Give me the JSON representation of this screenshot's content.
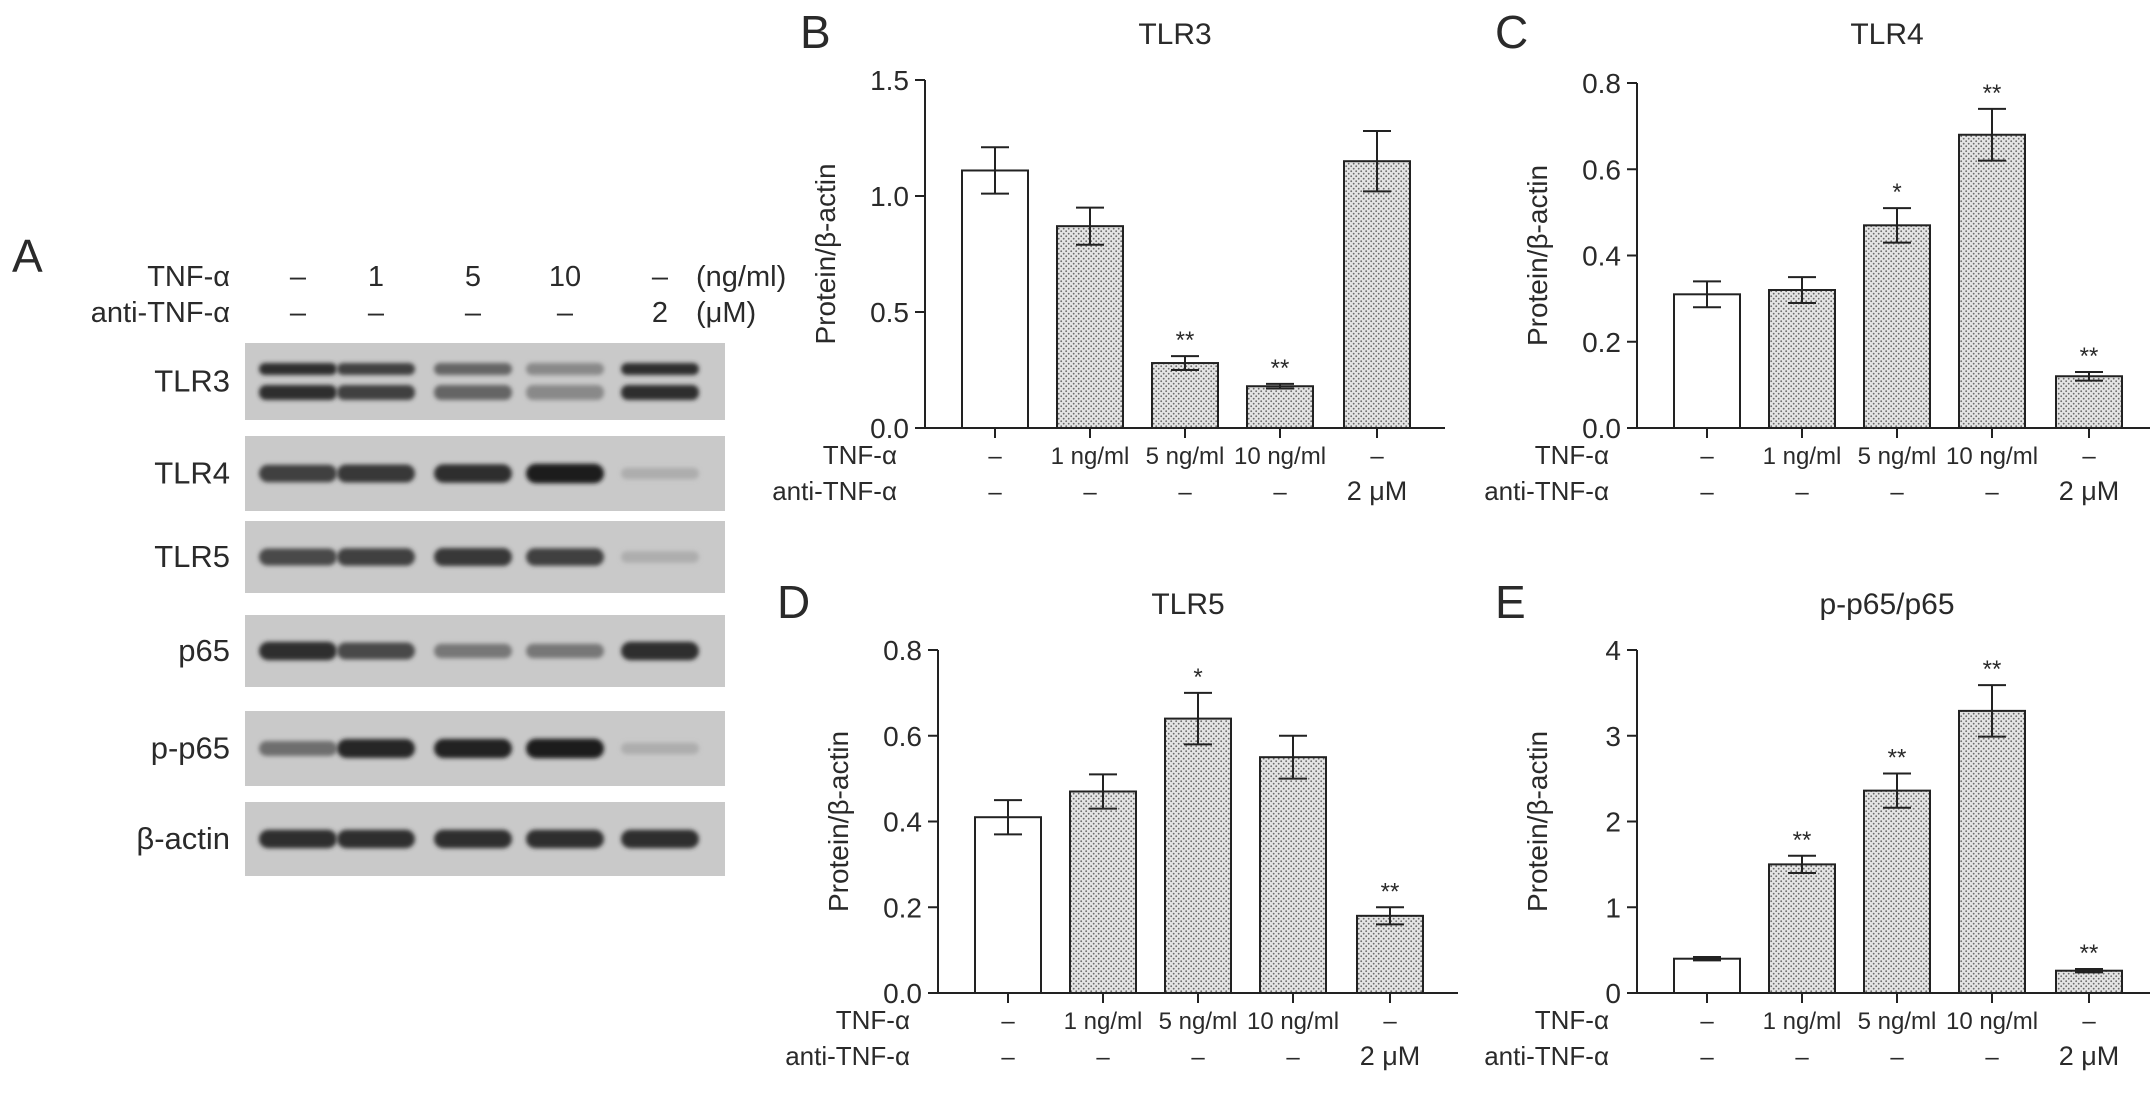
{
  "panel_a": {
    "letter": "A",
    "header_rows": [
      {
        "label": "TNF-α",
        "values": [
          "–",
          "1",
          "5",
          "10",
          "–"
        ],
        "unit": "(ng/ml)"
      },
      {
        "label": "anti-TNF-α",
        "values": [
          "–",
          "–",
          "–",
          "–",
          "2"
        ],
        "unit": "(μM)"
      }
    ],
    "blots": [
      {
        "label": "TLR3",
        "intensities": [
          0.85,
          0.75,
          0.55,
          0.35,
          0.85
        ],
        "double": true
      },
      {
        "label": "TLR4",
        "intensities": [
          0.75,
          0.8,
          0.85,
          0.95,
          0.15
        ],
        "double": false
      },
      {
        "label": "TLR5",
        "intensities": [
          0.7,
          0.75,
          0.8,
          0.75,
          0.15
        ],
        "double": false
      },
      {
        "label": "p65",
        "intensities": [
          0.85,
          0.7,
          0.45,
          0.45,
          0.85
        ],
        "double": false
      },
      {
        "label": "p-p65",
        "intensities": [
          0.5,
          0.9,
          0.92,
          0.95,
          0.15
        ],
        "double": false
      },
      {
        "label": "β-actin",
        "intensities": [
          0.85,
          0.85,
          0.85,
          0.85,
          0.85
        ],
        "double": false
      }
    ]
  },
  "row_labels": {
    "tnf": "TNF-α",
    "anti": "anti-TNF-α"
  },
  "tnf_row": [
    "–",
    "1 ng/ml",
    "5 ng/ml",
    "10 ng/ml",
    "–"
  ],
  "anti_row": [
    "–",
    "–",
    "–",
    "–",
    "2 μM"
  ],
  "colors": {
    "open_bar": "#ffffff",
    "dotted_bar": "#d6d6d6",
    "ink": "#222222"
  },
  "chart_data": [
    {
      "letter": "B",
      "type": "bar",
      "title": "TLR3",
      "ylabel": "Protein/β-actin",
      "ylim": [
        0,
        1.5
      ],
      "yticks": [
        "0.0",
        "0.5",
        "1.0",
        "1.5"
      ],
      "categories": [
        "–/–",
        "1 ng/ml/–",
        "5 ng/ml/–",
        "10 ng/ml/–",
        "–/2 μM"
      ],
      "values": [
        1.11,
        0.87,
        0.28,
        0.18,
        1.15
      ],
      "errors": [
        0.1,
        0.08,
        0.03,
        0.01,
        0.13
      ],
      "significance": [
        "",
        "",
        "**",
        "**",
        ""
      ]
    },
    {
      "letter": "C",
      "type": "bar",
      "title": "TLR4",
      "ylabel": "Protein/β-actin",
      "ylim": [
        0,
        0.8
      ],
      "yticks": [
        "0.0",
        "0.2",
        "0.4",
        "0.6",
        "0.8"
      ],
      "categories": [
        "–/–",
        "1 ng/ml/–",
        "5 ng/ml/–",
        "10 ng/ml/–",
        "–/2 μM"
      ],
      "values": [
        0.31,
        0.32,
        0.47,
        0.68,
        0.12
      ],
      "errors": [
        0.03,
        0.03,
        0.04,
        0.06,
        0.01
      ],
      "significance": [
        "",
        "",
        "*",
        "**",
        "**"
      ]
    },
    {
      "letter": "D",
      "type": "bar",
      "title": "TLR5",
      "ylabel": "Protein/β-actin",
      "ylim": [
        0,
        0.8
      ],
      "yticks": [
        "0.0",
        "0.2",
        "0.4",
        "0.6",
        "0.8"
      ],
      "categories": [
        "–/–",
        "1 ng/ml/–",
        "5 ng/ml/–",
        "10 ng/ml/–",
        "–/2 μM"
      ],
      "values": [
        0.41,
        0.47,
        0.64,
        0.55,
        0.18
      ],
      "errors": [
        0.04,
        0.04,
        0.06,
        0.05,
        0.02
      ],
      "significance": [
        "",
        "",
        "*",
        "",
        "**"
      ]
    },
    {
      "letter": "E",
      "type": "bar",
      "title": "p-p65/p65",
      "ylabel": "Protein/β-actin",
      "ylim": [
        0,
        4
      ],
      "yticks": [
        "0",
        "1",
        "2",
        "3",
        "4"
      ],
      "categories": [
        "–/–",
        "1 ng/ml/–",
        "5 ng/ml/–",
        "10 ng/ml/–",
        "–/2 μM"
      ],
      "values": [
        0.4,
        1.5,
        2.36,
        3.29,
        0.26
      ],
      "errors": [
        0.02,
        0.1,
        0.2,
        0.3,
        0.02
      ],
      "significance": [
        "",
        "**",
        "**",
        "**",
        "**"
      ]
    }
  ]
}
